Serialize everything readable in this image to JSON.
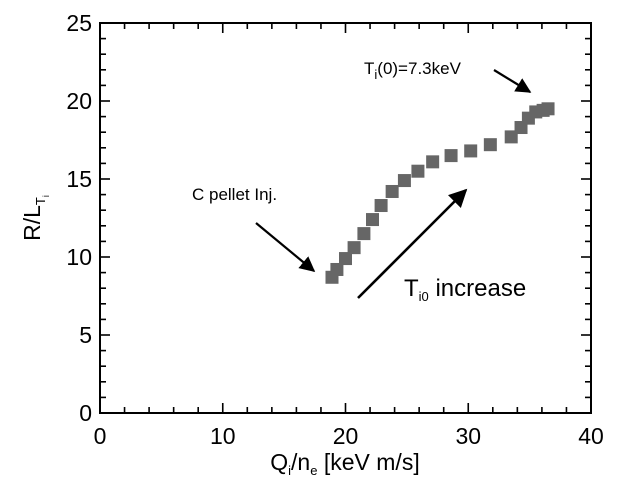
{
  "chart_data": {
    "type": "scatter",
    "xlim": [
      0,
      40
    ],
    "ylim": [
      0,
      25
    ],
    "x_ticks": [
      0,
      10,
      20,
      30,
      40
    ],
    "y_ticks": [
      0,
      5,
      10,
      15,
      20,
      25
    ],
    "grid": false,
    "legend": "none",
    "xlabel": {
      "main": "Q",
      "sub1": "i",
      "mid": "/n",
      "sub2": "e",
      "tail": " [keV m/s]"
    },
    "ylabel": {
      "main": "R/L",
      "sub1": "T",
      "sub2": "i"
    },
    "marker_color": "#666666",
    "series": [
      {
        "x": [
          18.9,
          19.3,
          20.0,
          20.7,
          21.5,
          22.2,
          22.9,
          23.8,
          24.8,
          25.9,
          27.1,
          28.6,
          30.2,
          31.8,
          33.5,
          34.3,
          34.9,
          35.5,
          36.1,
          36.5
        ],
        "y": [
          8.7,
          9.2,
          9.9,
          10.6,
          11.5,
          12.4,
          13.3,
          14.2,
          14.9,
          15.5,
          16.1,
          16.5,
          16.8,
          17.2,
          17.7,
          18.3,
          18.9,
          19.3,
          19.4,
          19.5
        ]
      }
    ],
    "annotations": {
      "pellet": "C pellet Inj.",
      "ti_label": {
        "main": "T",
        "sub": "i",
        "rest": "(0)=7.3keV"
      },
      "increase": {
        "main": "T",
        "sub": "i0",
        "rest": " increase"
      }
    }
  }
}
